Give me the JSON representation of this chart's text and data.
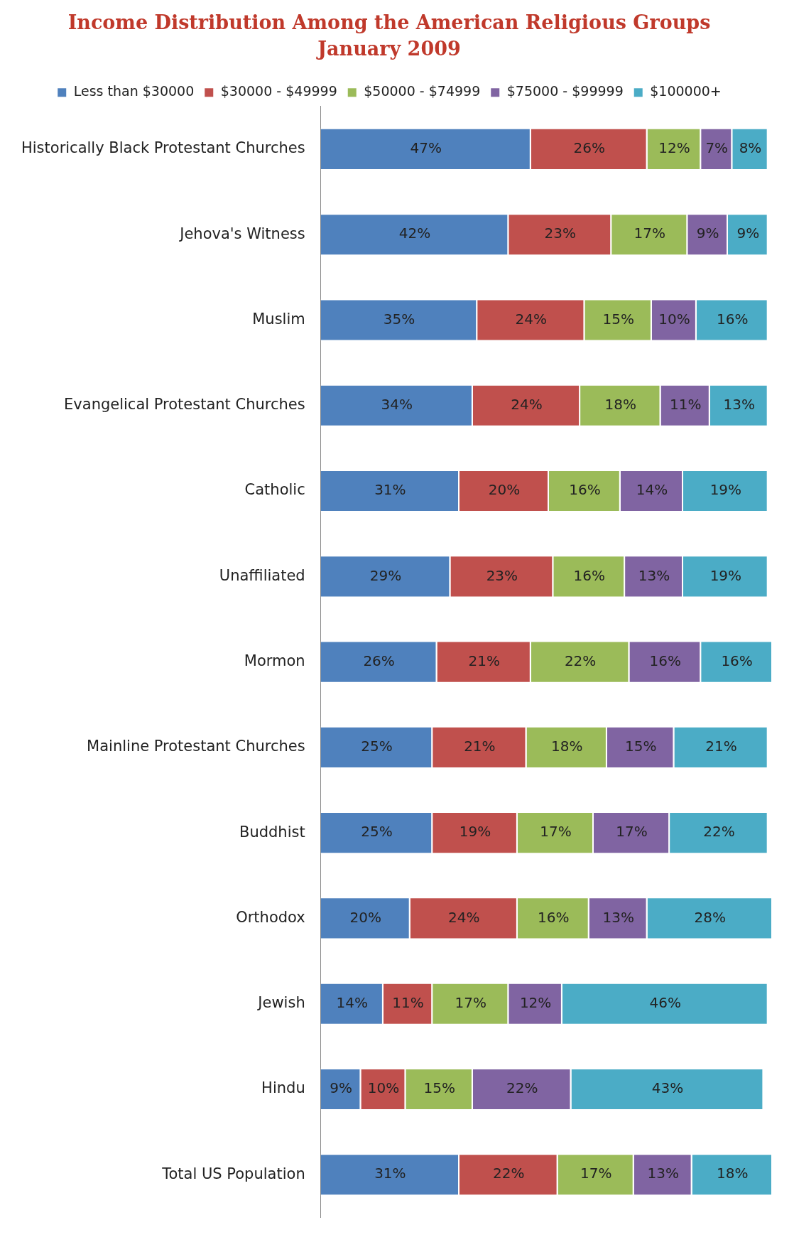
{
  "chart_data": {
    "type": "bar",
    "orientation": "horizontal",
    "stacked": true,
    "title": "Income Distribution Among the American Religious Groups",
    "subtitle": "January 2009",
    "legend": "top",
    "tick_labels": "y",
    "categories": [
      "Historically Black Protestant Churches",
      "Jehova's Witness",
      "Muslim",
      "Evangelical Protestant Churches",
      "Catholic",
      "Unaffiliated",
      "Mormon",
      "Mainline Protestant Churches",
      "Buddhist",
      "Orthodox",
      "Jewish",
      "Hindu",
      "Total US Population"
    ],
    "series": [
      {
        "name": "Less than $30000",
        "color": "#4f81bd",
        "values": [
          47,
          42,
          35,
          34,
          31,
          29,
          26,
          25,
          25,
          20,
          14,
          9,
          31
        ],
        "value_labels": [
          "47%",
          "42%",
          "35%",
          "34%",
          "31%",
          "29%",
          "26%",
          "25%",
          "25%",
          "20%",
          "14%",
          "9%",
          "31%"
        ]
      },
      {
        "name": "$30000 - $49999",
        "color": "#c0504d",
        "values": [
          26,
          23,
          24,
          24,
          20,
          23,
          21,
          21,
          19,
          24,
          11,
          10,
          22
        ],
        "value_labels": [
          "26%",
          "23%",
          "24%",
          "24%",
          "20%",
          "23%",
          "21%",
          "21%",
          "19%",
          "24%",
          "11%",
          "10%",
          "22%"
        ]
      },
      {
        "name": "$50000 - $74999",
        "color": "#9bbb59",
        "values": [
          12,
          17,
          15,
          18,
          16,
          16,
          22,
          18,
          17,
          16,
          17,
          15,
          17
        ],
        "value_labels": [
          "12%",
          "17%",
          "15%",
          "18%",
          "16%",
          "16%",
          "22%",
          "18%",
          "17%",
          "16%",
          "17%",
          "15%",
          "17%"
        ]
      },
      {
        "name": "$75000 - $99999",
        "color": "#8064a2",
        "values": [
          7,
          9,
          10,
          11,
          14,
          13,
          16,
          15,
          17,
          13,
          12,
          22,
          13
        ],
        "value_labels": [
          "7%",
          "9%",
          "10%",
          "11%",
          "14%",
          "13%",
          "16%",
          "15%",
          "17%",
          "13%",
          "12%",
          "22%",
          "13%"
        ]
      },
      {
        "name": "$100000+",
        "color": "#4bacc6",
        "values": [
          8,
          9,
          16,
          13,
          19,
          19,
          16,
          21,
          22,
          28,
          46,
          43,
          18
        ],
        "value_labels": [
          "8%",
          "9%",
          "16%",
          "13%",
          "19%",
          "19%",
          "16%",
          "21%",
          "22%",
          "28%",
          "46%",
          "43%",
          "18%"
        ]
      }
    ]
  }
}
